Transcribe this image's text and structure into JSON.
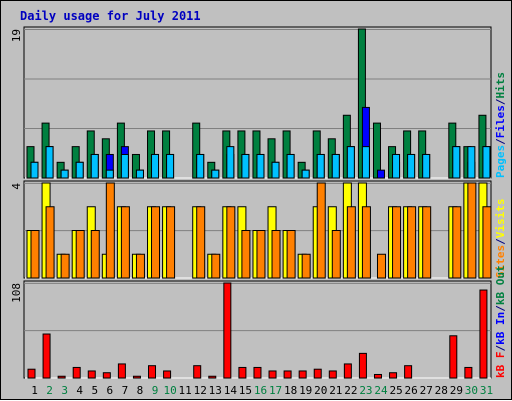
{
  "chart_data": {
    "type": "bar",
    "title": "Daily usage for July 2011",
    "categories": [
      "1",
      "2",
      "3",
      "4",
      "5",
      "6",
      "7",
      "8",
      "9",
      "10",
      "11",
      "12",
      "13",
      "14",
      "15",
      "16",
      "17",
      "18",
      "19",
      "20",
      "21",
      "22",
      "23",
      "24",
      "25",
      "26",
      "27",
      "28",
      "29",
      "30",
      "31"
    ],
    "weekend_days": [
      "2",
      "3",
      "9",
      "10",
      "16",
      "17",
      "23",
      "24",
      "30",
      "31"
    ],
    "panels": [
      {
        "id": "hits",
        "ymax_label": "19",
        "ylim": [
          0,
          19
        ],
        "legend": [
          {
            "label": "Pages",
            "color": "#00c0ff"
          },
          {
            "label": "/",
            "color": "#000080"
          },
          {
            "label": "Files",
            "color": "#0000ff"
          },
          {
            "label": "/",
            "color": "#000080"
          },
          {
            "label": "Hits",
            "color": "#008040"
          }
        ],
        "series": [
          {
            "name": "Hits",
            "color": "#008040",
            "values": [
              4,
              7,
              2,
              4,
              6,
              5,
              7,
              3,
              6,
              6,
              0,
              7,
              2,
              6,
              6,
              6,
              5,
              6,
              2,
              6,
              5,
              8,
              19,
              7,
              4,
              6,
              6,
              0,
              7,
              4,
              8
            ]
          },
          {
            "name": "Files",
            "color": "#0000ff",
            "values": [
              2,
              4,
              1,
              2,
              3,
              3,
              4,
              1,
              3,
              3,
              0,
              3,
              1,
              3,
              3,
              3,
              2,
              3,
              1,
              3,
              3,
              4,
              9,
              1,
              2,
              3,
              3,
              0,
              4,
              2,
              4
            ]
          },
          {
            "name": "Pages",
            "color": "#00c0ff",
            "values": [
              2,
              4,
              1,
              2,
              3,
              1,
              3,
              1,
              3,
              3,
              0,
              3,
              1,
              4,
              3,
              3,
              2,
              3,
              1,
              3,
              3,
              4,
              4,
              0,
              3,
              3,
              3,
              0,
              4,
              4,
              4
            ]
          }
        ]
      },
      {
        "id": "visits",
        "ymax_label": "4",
        "ylim": [
          0,
          4
        ],
        "legend": [
          {
            "label": "Sites",
            "color": "#ff8000"
          },
          {
            "label": "/",
            "color": "#000080"
          },
          {
            "label": "Visits",
            "color": "#ffff00"
          }
        ],
        "series": [
          {
            "name": "Visits",
            "color": "#ffff00",
            "values": [
              2,
              4,
              1,
              2,
              3,
              1,
              3,
              1,
              3,
              3,
              0,
              3,
              1,
              3,
              3,
              2,
              3,
              2,
              1,
              3,
              3,
              4,
              4,
              0,
              3,
              3,
              3,
              0,
              3,
              4,
              4
            ]
          },
          {
            "name": "Sites",
            "color": "#ff8000",
            "values": [
              2,
              3,
              1,
              2,
              2,
              4,
              3,
              1,
              3,
              3,
              0,
              3,
              1,
              3,
              2,
              2,
              2,
              2,
              1,
              4,
              2,
              3,
              3,
              1,
              3,
              3,
              3,
              0,
              3,
              4,
              3
            ]
          }
        ]
      },
      {
        "id": "kbytes",
        "ymax_label": "108",
        "ylim": [
          0,
          108
        ],
        "legend": [
          {
            "label": "kB F",
            "color": "#ff0000"
          },
          {
            "label": "/",
            "color": "#000080"
          },
          {
            "label": "kB In",
            "color": "#0000ff"
          },
          {
            "label": "/",
            "color": "#000080"
          },
          {
            "label": "kB Out",
            "color": "#008040"
          }
        ],
        "series": [
          {
            "name": "kB F",
            "color": "#ff0000",
            "values": [
              10,
              50,
              2,
              12,
              8,
              6,
              16,
              2,
              14,
              8,
              0,
              14,
              2,
              108,
              12,
              12,
              8,
              8,
              8,
              10,
              8,
              16,
              28,
              4,
              6,
              14,
              0,
              0,
              48,
              12,
              100
            ]
          }
        ]
      }
    ]
  }
}
